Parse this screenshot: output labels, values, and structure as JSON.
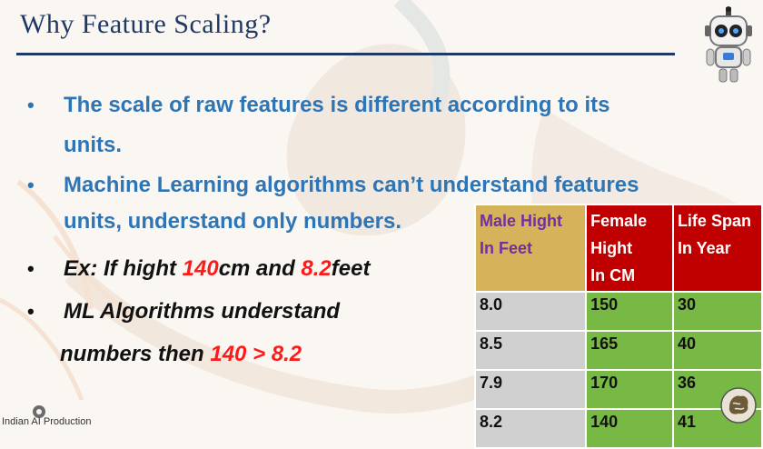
{
  "slide": {
    "title": "Why Feature Scaling?",
    "bullets": [
      {
        "line1": "The scale of raw features is different according to its",
        "line2": "units."
      },
      {
        "line1": "Machine Learning algorithms can’t understand features",
        "line2": "units, understand only numbers."
      },
      {
        "prefix": "Ex: If hight ",
        "num1": "140",
        "mid": "cm and ",
        "num2": "8.2",
        "suffix": "feet"
      },
      {
        "line1": "ML Algorithms understand",
        "prefix2": "numbers then ",
        "expr": "140 > 8.2"
      }
    ]
  },
  "table": {
    "headers": [
      {
        "line1": "Male Hight",
        "line2": "In Feet",
        "line3": ""
      },
      {
        "line1": "Female",
        "line2": "Hight",
        "line3": "In CM"
      },
      {
        "line1": "Life Span",
        "line2": "In Year",
        "line3": ""
      }
    ],
    "rows": [
      [
        "8.0",
        "150",
        "30"
      ],
      [
        "8.5",
        "165",
        "40"
      ],
      [
        "7.9",
        "170",
        "36"
      ],
      [
        "8.2",
        "140",
        "41"
      ]
    ]
  },
  "branding": {
    "channel_text": "Indian AI Production"
  },
  "colors": {
    "title": "#1f3864",
    "bullet_blue": "#2e75b6",
    "highlight_red": "#ff1a1a",
    "header_gold": "#d6b35a",
    "header_red": "#c00000",
    "cell_gray": "#d0d0d0",
    "cell_green": "#78b844"
  }
}
